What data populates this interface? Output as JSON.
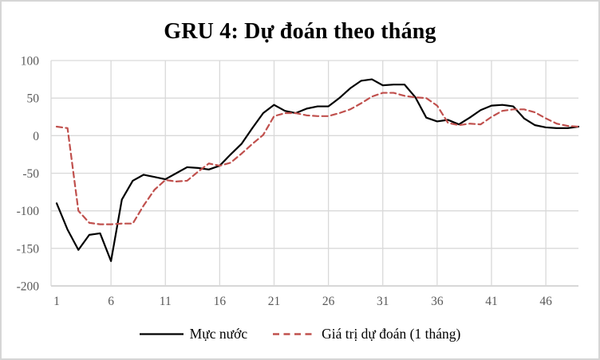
{
  "title": "GRU 4: Dự đoán theo tháng",
  "chart_data": {
    "type": "line",
    "x_range": [
      1,
      49
    ],
    "x_ticks": [
      1,
      6,
      11,
      16,
      21,
      26,
      31,
      36,
      41,
      46
    ],
    "y_ticks": [
      100,
      50,
      0,
      -50,
      -100,
      -150,
      -200
    ],
    "ylim": [
      -200,
      100
    ],
    "grid": true,
    "legend_position": "bottom-center",
    "title": "GRU 4: Dự đoán theo tháng",
    "xlabel": "",
    "ylabel": "",
    "series": [
      {
        "name": "Mực nước",
        "color": "#000000",
        "dash": "solid",
        "values": [
          -90,
          -125,
          -152,
          -132,
          -130,
          -167,
          -85,
          -60,
          -52,
          -55,
          -58,
          -50,
          -42,
          -43,
          -45,
          -40,
          -25,
          -11,
          10,
          30,
          41,
          33,
          30,
          36,
          39,
          39,
          50,
          63,
          73,
          75,
          67,
          68,
          68,
          51,
          24,
          19,
          21,
          15,
          24,
          34,
          40,
          41,
          39,
          23,
          14,
          11,
          10,
          10,
          12
        ]
      },
      {
        "name": "Giá trị dự đoán (1 tháng)",
        "color": "#c0504d",
        "dash": "dashed",
        "values": [
          12,
          10,
          -100,
          -116,
          -118,
          -118,
          -117,
          -117,
          -93,
          -72,
          -59,
          -61,
          -60,
          -48,
          -37,
          -40,
          -36,
          -24,
          -11,
          1,
          26,
          30,
          30,
          27,
          26,
          26,
          30,
          35,
          43,
          52,
          57,
          57,
          53,
          51,
          50,
          40,
          17,
          14,
          16,
          15,
          25,
          33,
          35,
          35,
          31,
          23,
          16,
          13,
          12
        ]
      }
    ]
  },
  "colors": {
    "gridline": "#d9d9d9",
    "axis_line": "#bfbfbf",
    "tick_label": "#595959",
    "title": "#000000",
    "frame_border": "#d6d6d6",
    "background": "#ffffff"
  }
}
